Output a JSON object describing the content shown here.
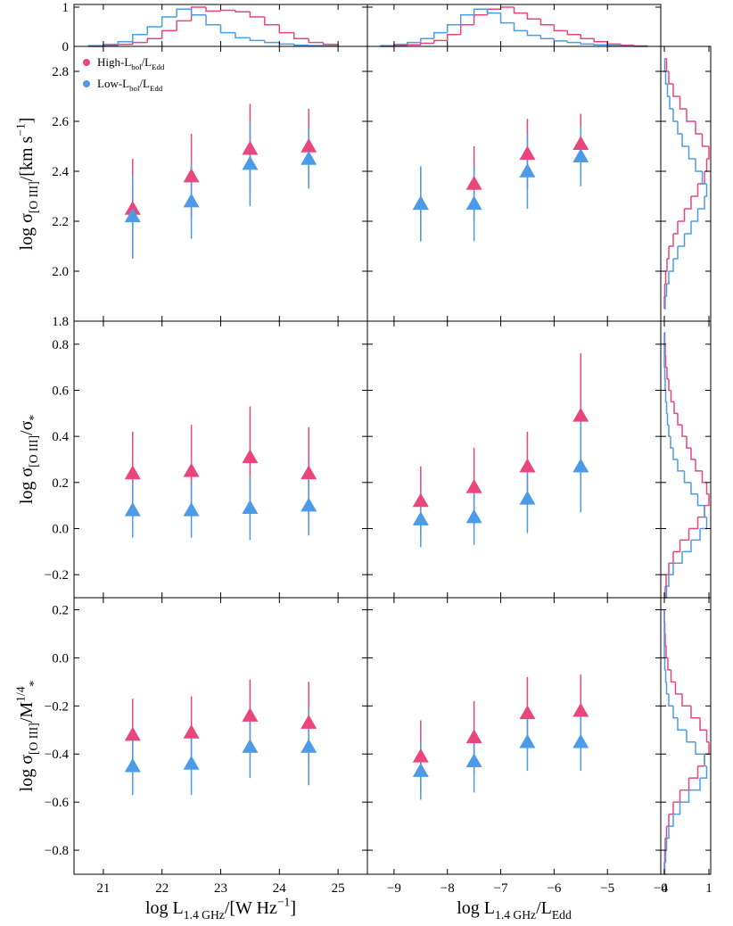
{
  "chart_data": [
    {
      "type": "histogram",
      "orientation": "vertical",
      "xlim": [
        20.5,
        25.5
      ],
      "ylim": [
        0,
        1
      ],
      "xticks": [
        21,
        22,
        23,
        24,
        25
      ],
      "xticklabels": false,
      "yticks": [
        0,
        1
      ],
      "bins": [
        20.75,
        21,
        21.25,
        21.5,
        21.75,
        22,
        22.25,
        22.5,
        22.75,
        23,
        23.25,
        23.5,
        23.75,
        24,
        24.25,
        24.5,
        24.75,
        25
      ],
      "series": [
        {
          "color": "#e8467c",
          "values": [
            0.0,
            0.02,
            0.05,
            0.1,
            0.2,
            0.4,
            0.65,
            1.0,
            0.9,
            0.92,
            0.88,
            0.75,
            0.55,
            0.35,
            0.2,
            0.1,
            0.05
          ]
        },
        {
          "color": "#4c9be8",
          "values": [
            0.02,
            0.05,
            0.12,
            0.3,
            0.5,
            0.75,
            0.95,
            0.8,
            0.55,
            0.35,
            0.22,
            0.15,
            0.1,
            0.06,
            0.03,
            0.02,
            0.01
          ]
        }
      ]
    },
    {
      "type": "histogram",
      "orientation": "vertical",
      "xlim": [
        -9.5,
        -4
      ],
      "ylim": [
        0,
        1
      ],
      "xticks": [
        -9,
        -8,
        -7,
        -6,
        -5,
        -4
      ],
      "xticklabels": false,
      "yticks": [
        0,
        1
      ],
      "yticklabels": false,
      "bins": [
        -9.25,
        -9,
        -8.75,
        -8.5,
        -8.25,
        -8,
        -7.75,
        -7.5,
        -7.25,
        -7,
        -6.75,
        -6.5,
        -6.25,
        -6,
        -5.75,
        -5.5,
        -5.25,
        -5,
        -4.75,
        -4.5,
        -4.25
      ],
      "series": [
        {
          "color": "#e8467c",
          "values": [
            0.0,
            0.02,
            0.04,
            0.08,
            0.15,
            0.3,
            0.55,
            0.8,
            0.95,
            1.0,
            0.85,
            0.7,
            0.55,
            0.4,
            0.3,
            0.2,
            0.12,
            0.06,
            0.03,
            0.01
          ]
        },
        {
          "color": "#4c9be8",
          "values": [
            0.02,
            0.05,
            0.1,
            0.2,
            0.35,
            0.55,
            0.8,
            0.95,
            0.85,
            0.6,
            0.4,
            0.28,
            0.2,
            0.14,
            0.1,
            0.06,
            0.04,
            0.02,
            0.01,
            0.0
          ]
        }
      ]
    },
    {
      "type": "scatter",
      "xlim": [
        20.5,
        25.5
      ],
      "ylim": [
        1.8,
        2.9
      ],
      "legend": "upper left",
      "xticks": [
        21,
        22,
        23,
        24,
        25
      ],
      "xticklabels": false,
      "yticks": [
        1.8,
        {
          "value": 2.0,
          "label": "2.0"
        },
        2.2,
        2.4,
        2.6,
        2.8
      ],
      "ylabel": [
        {
          "text": "log σ"
        },
        {
          "text": "[O III]",
          "shift": "sub"
        },
        {
          "text": "/[km s"
        },
        {
          "text": "−1",
          "shift": "sup"
        },
        {
          "text": "]"
        }
      ],
      "x": [
        21.5,
        22.5,
        23.5,
        24.5
      ],
      "series": [
        {
          "name": [
            {
              "text": "High-L"
            },
            {
              "text": "bol",
              "shift": "sub"
            },
            {
              "text": "/L"
            },
            {
              "text": "Edd",
              "shift": "sub"
            }
          ],
          "color": "#e8467c",
          "values": [
            2.25,
            2.38,
            2.49,
            2.5
          ],
          "errors": [
            0.2,
            0.17,
            0.18,
            0.15
          ]
        },
        {
          "name": [
            {
              "text": "Low-L"
            },
            {
              "text": "bol",
              "shift": "sub"
            },
            {
              "text": "/L"
            },
            {
              "text": "Edd",
              "shift": "sub"
            }
          ],
          "color": "#4c9be8",
          "values": [
            2.22,
            2.28,
            2.43,
            2.45
          ],
          "errors": [
            0.17,
            0.15,
            0.17,
            0.12
          ]
        }
      ]
    },
    {
      "type": "scatter",
      "xlim": [
        -9.5,
        -4
      ],
      "ylim": [
        1.8,
        2.9
      ],
      "xticks": [
        -9,
        -8,
        -7,
        -6,
        -5,
        -4
      ],
      "xticklabels": false,
      "yticks": [
        1.8,
        2.0,
        2.2,
        2.4,
        2.6,
        2.8
      ],
      "yticklabels": false,
      "x": [
        -8.5,
        -7.5,
        -6.5,
        -5.5
      ],
      "series": [
        {
          "color": "#e8467c",
          "values": [
            2.27,
            2.35,
            2.47,
            2.51
          ],
          "errors": [
            0.15,
            0.15,
            0.14,
            0.12
          ]
        },
        {
          "color": "#4c9be8",
          "values": [
            2.27,
            2.27,
            2.4,
            2.46
          ],
          "errors": [
            0.15,
            0.15,
            0.15,
            0.12
          ]
        }
      ]
    },
    {
      "type": "scatter",
      "xlim": [
        20.5,
        25.5
      ],
      "ylim": [
        -0.3,
        0.9
      ],
      "xticks": [
        21,
        22,
        23,
        24,
        25
      ],
      "xticklabels": false,
      "yticks": [
        {
          "value": -0.2,
          "label": "−0.2"
        },
        {
          "value": 0,
          "label": "0.0"
        },
        0.2,
        0.4,
        0.6,
        0.8
      ],
      "ylabel": [
        {
          "text": "log σ"
        },
        {
          "text": "[O III]",
          "shift": "sub"
        },
        {
          "text": "/σ"
        },
        {
          "text": "*",
          "shift": "sub"
        }
      ],
      "x": [
        21.5,
        22.5,
        23.5,
        24.5
      ],
      "series": [
        {
          "color": "#e8467c",
          "values": [
            0.24,
            0.25,
            0.31,
            0.24
          ],
          "errors": [
            0.18,
            0.2,
            0.22,
            0.2
          ]
        },
        {
          "color": "#4c9be8",
          "values": [
            0.08,
            0.08,
            0.09,
            0.1
          ],
          "errors": [
            0.12,
            0.12,
            0.14,
            0.13
          ]
        }
      ]
    },
    {
      "type": "scatter",
      "xlim": [
        -9.5,
        -4
      ],
      "ylim": [
        -0.3,
        0.9
      ],
      "xticks": [
        -9,
        -8,
        -7,
        -6,
        -5,
        -4
      ],
      "xticklabels": false,
      "yticks": [
        -0.2,
        0,
        0.2,
        0.4,
        0.6,
        0.8
      ],
      "yticklabels": false,
      "x": [
        -8.5,
        -7.5,
        -6.5,
        -5.5
      ],
      "series": [
        {
          "color": "#e8467c",
          "values": [
            0.12,
            0.18,
            0.27,
            0.49
          ],
          "errors": [
            0.15,
            0.17,
            0.15,
            0.27
          ]
        },
        {
          "color": "#4c9be8",
          "values": [
            0.04,
            0.05,
            0.13,
            0.27
          ],
          "errors": [
            0.12,
            0.12,
            0.15,
            0.2
          ]
        }
      ]
    },
    {
      "type": "scatter",
      "xlim": [
        20.5,
        25.5
      ],
      "ylim": [
        -0.9,
        0.25
      ],
      "xticks": [
        21,
        22,
        23,
        24,
        25
      ],
      "yticks": [
        {
          "value": -0.8,
          "label": "−0.8"
        },
        {
          "value": -0.6,
          "label": "−0.6"
        },
        {
          "value": -0.4,
          "label": "−0.4"
        },
        {
          "value": -0.2,
          "label": "−0.2"
        },
        {
          "value": 0,
          "label": "0.0"
        },
        0.2
      ],
      "xlabel": [
        {
          "text": "log L"
        },
        {
          "text": "1.4 GHz",
          "shift": "sub"
        },
        {
          "text": "/[W Hz"
        },
        {
          "text": "−1",
          "shift": "sup"
        },
        {
          "text": "]"
        }
      ],
      "ylabel": [
        {
          "text": "log σ"
        },
        {
          "text": "[O III]",
          "shift": "sub"
        },
        {
          "text": "/M"
        },
        {
          "text": "1/4",
          "shift": "sup"
        },
        {
          "text": "*",
          "shift": "sub"
        }
      ],
      "x": [
        21.5,
        22.5,
        23.5,
        24.5
      ],
      "series": [
        {
          "color": "#e8467c",
          "values": [
            -0.32,
            -0.31,
            -0.24,
            -0.27
          ],
          "errors": [
            0.15,
            0.15,
            0.15,
            0.17
          ]
        },
        {
          "color": "#4c9be8",
          "values": [
            -0.45,
            -0.44,
            -0.37,
            -0.37
          ],
          "errors": [
            0.12,
            0.13,
            0.13,
            0.16
          ]
        }
      ]
    },
    {
      "type": "scatter",
      "xlim": [
        -9.5,
        -4
      ],
      "ylim": [
        -0.9,
        0.25
      ],
      "xticks": [
        {
          "value": -9,
          "label": "−9"
        },
        {
          "value": -8,
          "label": "−8"
        },
        {
          "value": -7,
          "label": "−7"
        },
        {
          "value": -6,
          "label": "−6"
        },
        {
          "value": -5,
          "label": "−5"
        },
        {
          "value": -4,
          "label": "−4"
        }
      ],
      "yticks": [
        -0.8,
        -0.6,
        -0.4,
        -0.2,
        0,
        0.2
      ],
      "yticklabels": false,
      "xlabel": [
        {
          "text": "log L"
        },
        {
          "text": "1.4 GHz",
          "shift": "sub"
        },
        {
          "text": "/L"
        },
        {
          "text": "Edd",
          "shift": "sub"
        }
      ],
      "x": [
        -8.5,
        -7.5,
        -6.5,
        -5.5
      ],
      "series": [
        {
          "color": "#e8467c",
          "values": [
            -0.41,
            -0.33,
            -0.23,
            -0.22
          ],
          "errors": [
            0.15,
            0.15,
            0.15,
            0.15
          ]
        },
        {
          "color": "#4c9be8",
          "values": [
            -0.47,
            -0.43,
            -0.35,
            -0.35
          ],
          "errors": [
            0.12,
            0.13,
            0.12,
            0.12
          ]
        }
      ]
    },
    {
      "type": "histogram",
      "orientation": "horizontal",
      "xlim": [
        0,
        1
      ],
      "ylim": [
        1.8,
        2.9
      ],
      "xticks": [
        0,
        1
      ],
      "xticklabels": false,
      "yticks": [
        1.8,
        2.0,
        2.2,
        2.4,
        2.6,
        2.8
      ],
      "yticklabels": false,
      "bins": [
        1.85,
        1.9,
        1.95,
        2.0,
        2.05,
        2.1,
        2.15,
        2.2,
        2.25,
        2.3,
        2.35,
        2.4,
        2.45,
        2.5,
        2.55,
        2.6,
        2.65,
        2.7,
        2.75,
        2.8,
        2.85
      ],
      "series": [
        {
          "color": "#e8467c",
          "values": [
            0.0,
            0.01,
            0.03,
            0.06,
            0.1,
            0.2,
            0.3,
            0.45,
            0.6,
            0.75,
            0.9,
            0.95,
            1.0,
            0.85,
            0.7,
            0.5,
            0.35,
            0.2,
            0.1,
            0.05
          ]
        },
        {
          "color": "#4c9be8",
          "values": [
            0.02,
            0.05,
            0.1,
            0.2,
            0.3,
            0.45,
            0.6,
            0.75,
            0.9,
            0.95,
            0.85,
            0.7,
            0.55,
            0.4,
            0.3,
            0.2,
            0.12,
            0.07,
            0.03,
            0.01
          ]
        }
      ]
    },
    {
      "type": "histogram",
      "orientation": "horizontal",
      "xlim": [
        0,
        1
      ],
      "ylim": [
        -0.3,
        0.9
      ],
      "xticks": [
        0,
        1
      ],
      "xticklabels": false,
      "yticks": [
        -0.2,
        0,
        0.2,
        0.4,
        0.6,
        0.8
      ],
      "yticklabels": false,
      "bins": [
        -0.3,
        -0.25,
        -0.2,
        -0.15,
        -0.1,
        -0.05,
        0,
        0.05,
        0.1,
        0.15,
        0.2,
        0.25,
        0.3,
        0.35,
        0.4,
        0.45,
        0.5,
        0.55,
        0.6,
        0.65,
        0.7,
        0.75,
        0.8,
        0.85
      ],
      "series": [
        {
          "color": "#e8467c",
          "values": [
            0.02,
            0.04,
            0.1,
            0.2,
            0.35,
            0.55,
            0.75,
            0.9,
            1.0,
            0.95,
            0.85,
            0.7,
            0.6,
            0.5,
            0.4,
            0.3,
            0.22,
            0.15,
            0.1,
            0.06,
            0.03,
            0.02,
            0.01
          ]
        },
        {
          "color": "#4c9be8",
          "values": [
            0.05,
            0.1,
            0.2,
            0.4,
            0.6,
            0.8,
            0.95,
            0.9,
            0.75,
            0.6,
            0.45,
            0.3,
            0.2,
            0.14,
            0.1,
            0.07,
            0.05,
            0.03,
            0.02,
            0.01,
            0.0,
            0.0,
            0.0
          ]
        }
      ]
    },
    {
      "type": "histogram",
      "orientation": "horizontal",
      "xlim": [
        0,
        1
      ],
      "ylim": [
        -0.9,
        0.25
      ],
      "xticks": [
        0,
        1
      ],
      "yticks": [
        -0.8,
        -0.6,
        -0.4,
        -0.2,
        0,
        0.2
      ],
      "yticklabels": false,
      "bins": [
        -0.9,
        -0.85,
        -0.8,
        -0.75,
        -0.7,
        -0.65,
        -0.6,
        -0.55,
        -0.5,
        -0.45,
        -0.4,
        -0.35,
        -0.3,
        -0.25,
        -0.2,
        -0.15,
        -0.1,
        -0.05,
        0,
        0.05,
        0.1,
        0.15,
        0.2
      ],
      "series": [
        {
          "color": "#e8467c",
          "values": [
            0.0,
            0.01,
            0.02,
            0.05,
            0.1,
            0.2,
            0.35,
            0.55,
            0.75,
            0.9,
            1.0,
            0.95,
            0.8,
            0.6,
            0.4,
            0.25,
            0.15,
            0.08,
            0.04,
            0.02,
            0.01,
            0.0
          ]
        },
        {
          "color": "#4c9be8",
          "values": [
            0.01,
            0.03,
            0.05,
            0.1,
            0.2,
            0.35,
            0.55,
            0.8,
            0.95,
            0.9,
            0.7,
            0.5,
            0.3,
            0.2,
            0.1,
            0.05,
            0.03,
            0.01,
            0.0,
            0.0,
            0.0,
            0.0
          ]
        }
      ]
    }
  ]
}
